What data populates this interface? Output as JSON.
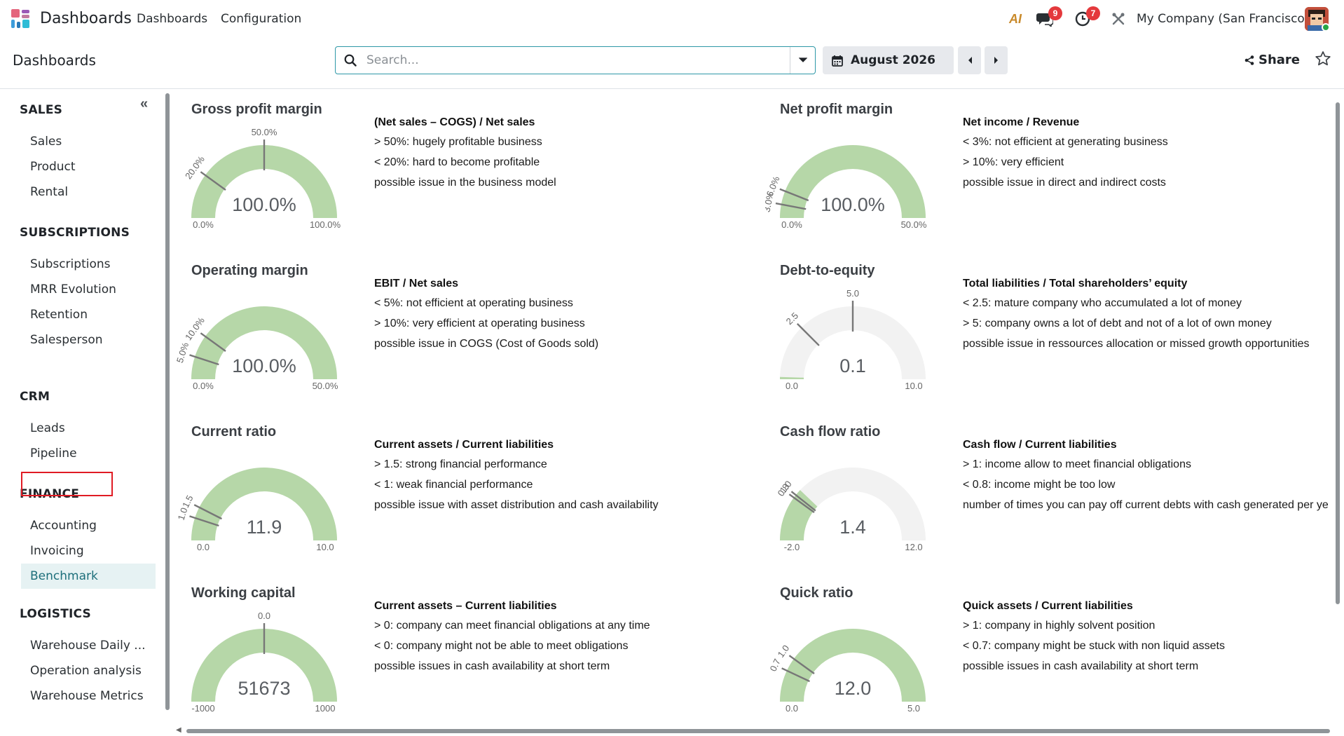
{
  "navbar": {
    "app_title": "Dashboards",
    "menu": [
      "Dashboards",
      "Configuration"
    ],
    "ai_label": "AI",
    "messages_badge": "9",
    "activities_badge": "7",
    "company": "My Company (San Francisco)"
  },
  "control_panel": {
    "breadcrumb": "Dashboards",
    "search_placeholder": "Search...",
    "date_label": "August 2026",
    "share_label": "Share"
  },
  "sidebar": {
    "sections": [
      {
        "title": "SALES",
        "items": [
          "Sales",
          "Product",
          "Rental"
        ]
      },
      {
        "title": "SUBSCRIPTIONS",
        "items": [
          "Subscriptions",
          "MRR Evolution",
          "Retention",
          "Salesperson"
        ]
      },
      {
        "title": "CRM",
        "items": [
          "Leads",
          "Pipeline"
        ]
      },
      {
        "title": "FINANCE",
        "items": [
          "Accounting",
          "Invoicing",
          "Benchmark"
        ]
      },
      {
        "title": "LOGISTICS",
        "items": [
          "Warehouse Daily ...",
          "Operation analysis",
          "Warehouse Metrics"
        ]
      }
    ],
    "active_item": "Benchmark"
  },
  "colors": {
    "gauge_fill": "#b6d7a8",
    "gauge_empty": "#f2f2f2",
    "accent": "#2e98a7",
    "badge": "#e4393c",
    "highlight": "#e01b24"
  },
  "cards": [
    {
      "title": "Gross profit margin",
      "value": "100.0%",
      "min_label": "0.0%",
      "max_label": "100.0%",
      "min": 0,
      "max": 100,
      "fill": 100,
      "ticks": [
        {
          "v": 20,
          "label": "20.0%"
        },
        {
          "v": 50,
          "label": "50.0%"
        }
      ],
      "desc_title": "(Net sales – COGS) / Net sales",
      "lines": [
        "> 50%: hugely profitable business",
        "< 20%: hard to become profitable",
        "possible issue in the business model"
      ]
    },
    {
      "title": "Net profit margin",
      "value": "100.0%",
      "min_label": "0.0%",
      "max_label": "50.0%",
      "min": 0,
      "max": 50,
      "fill": 50,
      "ticks": [
        {
          "v": 3,
          "label": "3.0%"
        },
        {
          "v": 6,
          "label": "6.0%"
        }
      ],
      "desc_title": "Net income / Revenue",
      "lines": [
        "< 3%: not efficient at generating business",
        "> 10%: very efficient",
        "possible issue in direct and indirect costs"
      ]
    },
    {
      "title": "Operating margin",
      "value": "100.0%",
      "min_label": "0.0%",
      "max_label": "50.0%",
      "min": 0,
      "max": 50,
      "fill": 50,
      "ticks": [
        {
          "v": 5,
          "label": "5.0%"
        },
        {
          "v": 10,
          "label": "10.0%"
        }
      ],
      "desc_title": "EBIT / Net sales",
      "lines": [
        "< 5%: not efficient at operating business",
        "> 10%: very efficient at operating business",
        "possible issue in COGS (Cost of Goods sold)"
      ]
    },
    {
      "title": "Debt-to-equity",
      "value": "0.1",
      "min_label": "0.0",
      "max_label": "10.0",
      "min": 0,
      "max": 10,
      "fill": 0.1,
      "ticks": [
        {
          "v": 2.5,
          "label": "2.5"
        },
        {
          "v": 5,
          "label": "5.0"
        }
      ],
      "desc_title": "Total liabilities / Total shareholders’ equity",
      "lines": [
        "< 2.5: mature company who accumulated a lot of money",
        "> 5: company owns a lot of debt and not of a lot of own money",
        "possible issue in ressources allocation or missed growth opportunities"
      ]
    },
    {
      "title": "Current ratio",
      "value": "11.9",
      "min_label": "0.0",
      "max_label": "10.0",
      "min": 0,
      "max": 10,
      "fill": 10,
      "ticks": [
        {
          "v": 1,
          "label": "1.0"
        },
        {
          "v": 1.5,
          "label": "1.5"
        }
      ],
      "desc_title": "Current assets / Current liabilities",
      "lines": [
        "> 1.5: strong financial performance",
        "< 1: weak financial performance",
        "possible issue with asset distribution and cash availability"
      ]
    },
    {
      "title": "Cash flow ratio",
      "value": "1.4",
      "min_label": "-2.0",
      "max_label": "12.0",
      "min": -2,
      "max": 12,
      "fill": 1.4,
      "ticks": [
        {
          "v": 0.8,
          "label": "0.8"
        },
        {
          "v": 1,
          "label": "1.0"
        }
      ],
      "desc_title": "Cash flow / Current liabilities",
      "lines": [
        "> 1: income allow to meet financial obligations",
        "< 0.8: income might be too low",
        "number of times you can pay off current debts with cash generated per ye"
      ]
    },
    {
      "title": "Working capital",
      "value": "51673",
      "min_label": "-1000",
      "max_label": "1000",
      "min": -1000,
      "max": 1000,
      "fill": 1000,
      "ticks": [
        {
          "v": 0,
          "label": "0.0"
        }
      ],
      "desc_title": "Current assets – Current liabilities",
      "lines": [
        "> 0: company can meet financial obligations at any time",
        "< 0: company might not be able to meet obligations",
        "possible issues in cash availability at short term"
      ]
    },
    {
      "title": "Quick ratio",
      "value": "12.0",
      "min_label": "0.0",
      "max_label": "5.0",
      "min": 0,
      "max": 5,
      "fill": 5,
      "ticks": [
        {
          "v": 0.7,
          "label": "0.7"
        },
        {
          "v": 1,
          "label": "1.0"
        }
      ],
      "desc_title": "Quick assets / Current liabilities",
      "lines": [
        "> 1: company in highly solvent position",
        "< 0.7: company might be stuck with non liquid assets",
        "possible issues in cash availability at short term"
      ]
    }
  ]
}
